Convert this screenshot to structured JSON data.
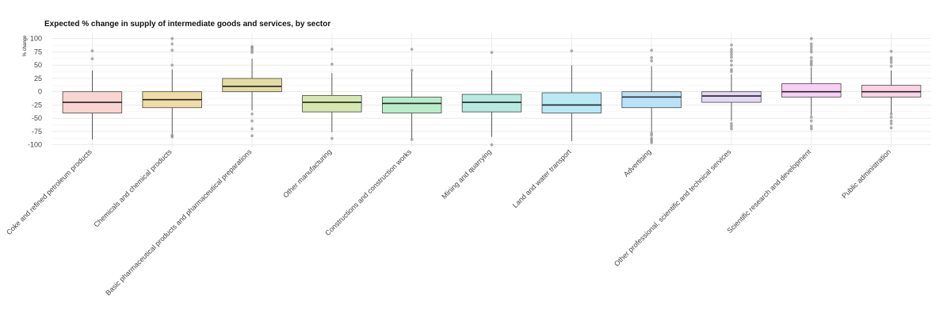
{
  "chart_data": {
    "type": "boxplot",
    "title": "Expected % change in supply of intermediate goods and services, by sector",
    "xlabel": "",
    "ylabel": "% change",
    "ylim": [
      -105,
      110
    ],
    "yticks": [
      100,
      75,
      50,
      25,
      0,
      -25,
      -50,
      -75,
      -100
    ],
    "grid": true,
    "legend": "none",
    "categories": [
      "Coke and refined petroleum products",
      "Chemicals and chemical products",
      "Basic pharmaceutical products and pharmaceutical preparations",
      "Other manufacturing",
      "Constructions and construction works",
      "Mining and quarrying",
      "Land and water transport",
      "Advertising",
      "Other professional, scientific and technical services",
      "Scientific research and development",
      "Public administration"
    ],
    "boxes": [
      {
        "q1": -40,
        "median": -20,
        "q3": 0,
        "whisker_low": -90,
        "whisker_high": 40,
        "outliers": [
          77,
          62
        ],
        "color": "#f9d4d0"
      },
      {
        "q1": -30,
        "median": -15,
        "q3": 0,
        "whisker_low": -80,
        "whisker_high": 42,
        "outliers": [
          100,
          90,
          78,
          50,
          -82,
          -85
        ],
        "color": "#f1dba6"
      },
      {
        "q1": 0,
        "median": 10,
        "q3": 25,
        "whisker_low": -35,
        "whisker_high": 62,
        "outliers": [
          85,
          82,
          78,
          74,
          -42,
          -55,
          -70,
          -83
        ],
        "color": "#e3dba4"
      },
      {
        "q1": -38,
        "median": -20,
        "q3": -7,
        "whisker_low": -76,
        "whisker_high": 35,
        "outliers": [
          80,
          52,
          -88
        ],
        "color": "#d5e8af"
      },
      {
        "q1": -40,
        "median": -22,
        "q3": -10,
        "whisker_low": -88,
        "whisker_high": 37,
        "outliers": [
          80,
          40,
          -90
        ],
        "color": "#b9ecc9"
      },
      {
        "q1": -38,
        "median": -20,
        "q3": -5,
        "whisker_low": -85,
        "whisker_high": 40,
        "outliers": [
          74,
          -100
        ],
        "color": "#b7ebe2"
      },
      {
        "q1": -40,
        "median": -25,
        "q3": -2,
        "whisker_low": -93,
        "whisker_high": 50,
        "outliers": [
          77
        ],
        "color": "#b8e9f4"
      },
      {
        "q1": -30,
        "median": -10,
        "q3": 0,
        "whisker_low": -75,
        "whisker_high": 48,
        "outliers": [
          78,
          64,
          58,
          -78,
          -82,
          -88,
          -92,
          -96
        ],
        "color": "#b9e1f8"
      },
      {
        "q1": -20,
        "median": -8,
        "q3": 0,
        "whisker_low": -55,
        "whisker_high": 33,
        "outliers": [
          88,
          80,
          75,
          70,
          65,
          58,
          50,
          42,
          38,
          -60,
          -65,
          -70
        ],
        "color": "#e3d8f6"
      },
      {
        "q1": -10,
        "median": 0,
        "q3": 15,
        "whisker_low": -45,
        "whisker_high": 46,
        "outliers": [
          100,
          90,
          85,
          80,
          75,
          64,
          58,
          54,
          50,
          -48,
          -55,
          -65,
          -70
        ],
        "color": "#f8cff4"
      },
      {
        "q1": -10,
        "median": 0,
        "q3": 12,
        "whisker_low": -40,
        "whisker_high": 40,
        "outliers": [
          76,
          64,
          60,
          55,
          48,
          -42,
          -48,
          -55,
          -60,
          -68
        ],
        "color": "#fbd3e6"
      }
    ]
  }
}
